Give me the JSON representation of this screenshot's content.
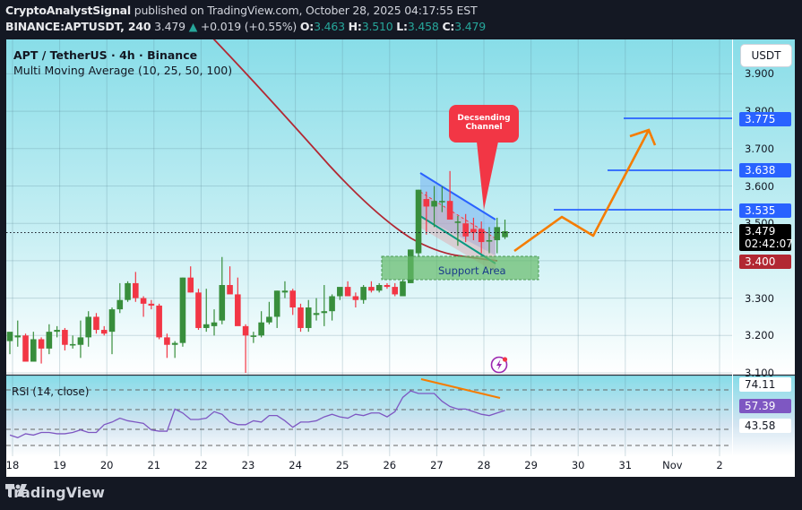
{
  "header": {
    "publisher": "CryptoAnalystSignal",
    "published_text": "published on TradingView.com, October 28, 2025 04:17:55 EST",
    "symbol": "BINANCE:APTUSDT, 240",
    "last": "3.479",
    "change": "+0.019 (+0.55%)",
    "o_label": "O:",
    "o": "3.463",
    "h_label": "H:",
    "h": "3.510",
    "l_label": "L:",
    "l": "3.458",
    "c_label": "C:",
    "c": "3.479"
  },
  "legend": {
    "title": "APT / TetherUS · 4h · Binance",
    "indicator": "Multi Moving Average (10, 25, 50, 100)"
  },
  "price_axis": {
    "currency_button": "USDT",
    "ticks": [
      "3.900",
      "3.800",
      "3.700",
      "3.600",
      "3.500",
      "3.400",
      "3.300",
      "3.200",
      "3.100"
    ],
    "tags": {
      "t3": "3.775",
      "t2": "3.638",
      "t1": "3.535",
      "last": "3.479",
      "countdown": "02:42:07",
      "ma": "3.400"
    }
  },
  "rsi": {
    "label": "RSI (14, close)",
    "upper": "74.11",
    "value": "57.39",
    "lower": "43.58"
  },
  "time_axis": {
    "ticks": [
      "18",
      "19",
      "20",
      "21",
      "22",
      "23",
      "24",
      "25",
      "26",
      "27",
      "28",
      "29",
      "30",
      "31",
      "Nov",
      "2"
    ]
  },
  "annotations": {
    "callout": "Decsending Channel",
    "callout_line1": "Decsending",
    "callout_line2": "Channel",
    "support": "Support Area"
  },
  "branding": {
    "logo_text": "TradingView"
  },
  "colors": {
    "up": "#388e3c",
    "down": "#f23645",
    "ma": "#b22833",
    "target_line": "#2962ff",
    "projection": "#f57c00",
    "rsi_line": "#7e57c2",
    "support_fill": "#66bb6a"
  },
  "chart_data": {
    "type": "candlestick",
    "title": "APT / TetherUS · 4h · Binance",
    "symbol": "BINANCE:APTUSDT",
    "interval": "4h",
    "ylim": [
      3.08,
      3.95
    ],
    "x_ticks": [
      "18",
      "19",
      "20",
      "21",
      "22",
      "23",
      "24",
      "25",
      "26",
      "27",
      "28",
      "29",
      "30",
      "31",
      "Nov",
      "2"
    ],
    "last_price": 3.479,
    "ohlc_last": {
      "open": 3.463,
      "high": 3.51,
      "low": 3.458,
      "close": 3.479
    },
    "target_levels": [
      3.535,
      3.638,
      3.775
    ],
    "support_zone": [
      3.355,
      3.418
    ],
    "ma_value": 3.4,
    "pattern": "Descending Channel",
    "candles": [
      {
        "o": 3.185,
        "h": 3.2,
        "l": 3.15,
        "c": 3.21
      },
      {
        "o": 3.195,
        "h": 3.24,
        "l": 3.17,
        "c": 3.2
      },
      {
        "o": 3.2,
        "h": 3.205,
        "l": 3.13,
        "c": 3.13
      },
      {
        "o": 3.13,
        "h": 3.21,
        "l": 3.13,
        "c": 3.19
      },
      {
        "o": 3.19,
        "h": 3.195,
        "l": 3.125,
        "c": 3.165
      },
      {
        "o": 3.165,
        "h": 3.23,
        "l": 3.15,
        "c": 3.21
      },
      {
        "o": 3.21,
        "h": 3.225,
        "l": 3.195,
        "c": 3.215
      },
      {
        "o": 3.215,
        "h": 3.22,
        "l": 3.16,
        "c": 3.175
      },
      {
        "o": 3.175,
        "h": 3.2,
        "l": 3.165,
        "c": 3.177
      },
      {
        "o": 3.175,
        "h": 3.24,
        "l": 3.14,
        "c": 3.195
      },
      {
        "o": 3.195,
        "h": 3.265,
        "l": 3.17,
        "c": 3.25
      },
      {
        "o": 3.25,
        "h": 3.26,
        "l": 3.205,
        "c": 3.215
      },
      {
        "o": 3.215,
        "h": 3.225,
        "l": 3.2,
        "c": 3.205
      },
      {
        "o": 3.21,
        "h": 3.275,
        "l": 3.15,
        "c": 3.27
      },
      {
        "o": 3.27,
        "h": 3.34,
        "l": 3.26,
        "c": 3.295
      },
      {
        "o": 3.295,
        "h": 3.345,
        "l": 3.29,
        "c": 3.34
      },
      {
        "o": 3.34,
        "h": 3.37,
        "l": 3.29,
        "c": 3.3
      },
      {
        "o": 3.3,
        "h": 3.305,
        "l": 3.25,
        "c": 3.285
      },
      {
        "o": 3.285,
        "h": 3.295,
        "l": 3.27,
        "c": 3.28
      },
      {
        "o": 3.28,
        "h": 3.285,
        "l": 3.19,
        "c": 3.195
      },
      {
        "o": 3.195,
        "h": 3.205,
        "l": 3.14,
        "c": 3.175
      },
      {
        "o": 3.175,
        "h": 3.185,
        "l": 3.14,
        "c": 3.18
      },
      {
        "o": 3.18,
        "h": 3.355,
        "l": 3.17,
        "c": 3.355
      },
      {
        "o": 3.355,
        "h": 3.385,
        "l": 3.315,
        "c": 3.315
      },
      {
        "o": 3.315,
        "h": 3.325,
        "l": 3.215,
        "c": 3.22
      },
      {
        "o": 3.22,
        "h": 3.325,
        "l": 3.21,
        "c": 3.23
      },
      {
        "o": 3.225,
        "h": 3.27,
        "l": 3.2,
        "c": 3.235
      },
      {
        "o": 3.24,
        "h": 3.41,
        "l": 3.23,
        "c": 3.335
      },
      {
        "o": 3.335,
        "h": 3.385,
        "l": 3.32,
        "c": 3.31
      },
      {
        "o": 3.31,
        "h": 3.355,
        "l": 3.265,
        "c": 3.225
      },
      {
        "o": 3.225,
        "h": 3.23,
        "l": 3.1,
        "c": 3.2
      },
      {
        "o": 3.2,
        "h": 3.21,
        "l": 3.18,
        "c": 3.2
      },
      {
        "o": 3.2,
        "h": 3.265,
        "l": 3.195,
        "c": 3.235
      },
      {
        "o": 3.235,
        "h": 3.29,
        "l": 3.23,
        "c": 3.25
      },
      {
        "o": 3.25,
        "h": 3.32,
        "l": 3.22,
        "c": 3.32
      },
      {
        "o": 3.315,
        "h": 3.345,
        "l": 3.3,
        "c": 3.32
      },
      {
        "o": 3.32,
        "h": 3.325,
        "l": 3.255,
        "c": 3.275
      },
      {
        "o": 3.275,
        "h": 3.285,
        "l": 3.21,
        "c": 3.22
      },
      {
        "o": 3.22,
        "h": 3.295,
        "l": 3.21,
        "c": 3.275
      },
      {
        "o": 3.255,
        "h": 3.3,
        "l": 3.24,
        "c": 3.26
      },
      {
        "o": 3.26,
        "h": 3.335,
        "l": 3.225,
        "c": 3.265
      },
      {
        "o": 3.265,
        "h": 3.31,
        "l": 3.24,
        "c": 3.305
      },
      {
        "o": 3.305,
        "h": 3.325,
        "l": 3.295,
        "c": 3.33
      },
      {
        "o": 3.33,
        "h": 3.345,
        "l": 3.305,
        "c": 3.305
      },
      {
        "o": 3.305,
        "h": 3.315,
        "l": 3.275,
        "c": 3.295
      },
      {
        "o": 3.295,
        "h": 3.335,
        "l": 3.285,
        "c": 3.33
      },
      {
        "o": 3.33,
        "h": 3.345,
        "l": 3.315,
        "c": 3.32
      },
      {
        "o": 3.32,
        "h": 3.34,
        "l": 3.315,
        "c": 3.335
      },
      {
        "o": 3.335,
        "h": 3.34,
        "l": 3.325,
        "c": 3.33
      },
      {
        "o": 3.33,
        "h": 3.34,
        "l": 3.305,
        "c": 3.31
      },
      {
        "o": 3.305,
        "h": 3.35,
        "l": 3.305,
        "c": 3.345
      },
      {
        "o": 3.34,
        "h": 3.43,
        "l": 3.34,
        "c": 3.43
      },
      {
        "o": 3.42,
        "h": 3.59,
        "l": 3.41,
        "c": 3.59
      },
      {
        "o": 3.565,
        "h": 3.585,
        "l": 3.47,
        "c": 3.545
      },
      {
        "o": 3.545,
        "h": 3.6,
        "l": 3.49,
        "c": 3.56
      },
      {
        "o": 3.56,
        "h": 3.6,
        "l": 3.53,
        "c": 3.56
      },
      {
        "o": 3.56,
        "h": 3.64,
        "l": 3.51,
        "c": 3.51
      },
      {
        "o": 3.505,
        "h": 3.52,
        "l": 3.44,
        "c": 3.505
      },
      {
        "o": 3.5,
        "h": 3.525,
        "l": 3.45,
        "c": 3.465
      },
      {
        "o": 3.485,
        "h": 3.515,
        "l": 3.455,
        "c": 3.475
      },
      {
        "o": 3.485,
        "h": 3.505,
        "l": 3.42,
        "c": 3.45
      },
      {
        "o": 3.455,
        "h": 3.49,
        "l": 3.42,
        "c": 3.455
      },
      {
        "o": 3.455,
        "h": 3.515,
        "l": 3.42,
        "c": 3.49
      },
      {
        "o": 3.463,
        "h": 3.51,
        "l": 3.458,
        "c": 3.479
      }
    ],
    "rsi": {
      "label": "RSI (14, close)",
      "levels": {
        "upper": 74.11,
        "middle_value": 57.39,
        "lower": 43.58
      },
      "values": [
        38,
        36,
        39,
        38,
        40,
        40,
        39,
        39,
        40,
        42,
        40,
        40,
        46,
        48,
        51,
        49,
        48,
        47,
        42,
        41,
        41,
        58,
        55,
        50,
        50,
        51,
        56,
        54,
        48,
        46,
        46,
        49,
        48,
        53,
        53,
        49,
        44,
        48,
        48,
        49,
        52,
        54,
        52,
        51,
        54,
        53,
        55,
        55,
        52,
        56,
        67,
        72,
        70,
        70,
        70,
        64,
        60,
        58,
        58,
        56,
        54,
        53,
        55,
        57
      ]
    }
  }
}
